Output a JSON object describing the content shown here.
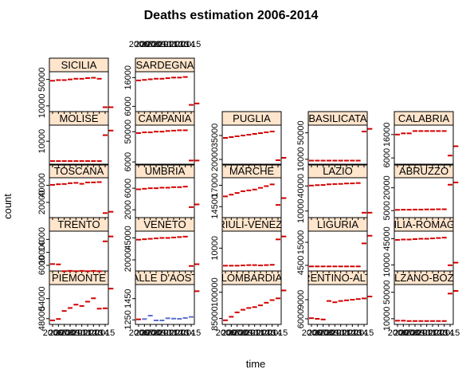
{
  "chart_data": {
    "type": "scatter",
    "title": "Deaths estimation 2006-2014",
    "xlabel": "time",
    "ylabel": "count",
    "x_ticks": [
      "2006",
      "2007",
      "2008",
      "2009",
      "2010",
      "2011",
      "2012",
      "2013",
      "2014",
      "2015"
    ],
    "series_color": "#d40000",
    "alt_color": "#5a6fd0",
    "strip_color": "#ffe5cc",
    "panels": [
      {
        "name": "PIEMONTE",
        "y_ticks": [
          "48000",
          "54000"
        ],
        "ylim": [
          47000,
          57500
        ],
        "values": [
          47500,
          47900,
          50300,
          51200,
          52200,
          51800,
          53100,
          54100,
          51000,
          51100,
          57000
        ]
      },
      {
        "name": "TRENTO",
        "y_ticks": [
          "6000",
          "10000",
          "14000"
        ],
        "ylim": [
          5000,
          15800
        ],
        "values": [
          6400,
          6300,
          4200,
          4300,
          4200,
          4300,
          4200,
          4300,
          4200,
          13400,
          14900
        ]
      },
      {
        "name": "TOSCANA",
        "y_ticks": [
          "20000",
          "40000"
        ],
        "ylim": [
          5000,
          46000
        ],
        "values": [
          40500,
          41200,
          41500,
          42400,
          42800,
          41700,
          43300,
          43400,
          43700,
          7500,
          9000
        ]
      },
      {
        "name": "MOLISE",
        "y_ticks": [
          "10000"
        ],
        "ylim": [
          3000,
          14500
        ],
        "values": [
          3500,
          3500,
          3500,
          3500,
          3500,
          3500,
          3500,
          3500,
          3500,
          12000,
          13500
        ]
      },
      {
        "name": "SICILIA",
        "y_ticks": [
          "10000",
          "50000"
        ],
        "ylim": [
          5000,
          58000
        ],
        "values": [
          48000,
          49000,
          49000,
          50000,
          51000,
          51000,
          52000,
          52500,
          51000,
          8000,
          8000
        ]
      },
      {
        "name": "VALLE D'AOSTA",
        "y_ticks": [
          "1250",
          "1450"
        ],
        "ylim": [
          1230,
          1560
        ],
        "values": [
          1255,
          1258,
          1290,
          1245,
          1245,
          1265,
          1262,
          1260,
          1268,
          1278,
          1520
        ],
        "alt_marks": [
          1,
          2,
          3,
          4,
          5,
          6,
          7,
          8,
          9
        ]
      },
      {
        "name": "VENETO",
        "y_ticks": [
          "20000",
          "45000"
        ],
        "ylim": [
          10000,
          50000
        ],
        "values": [
          43000,
          43500,
          44000,
          44500,
          45000,
          45000,
          45500,
          46000,
          46500,
          13000,
          15000
        ]
      },
      {
        "name": "UMBRIA",
        "y_ticks": [
          "2000",
          "6000"
        ],
        "ylim": [
          1000,
          7500
        ],
        "values": [
          5800,
          5900,
          6000,
          6000,
          6100,
          6100,
          6200,
          6200,
          6300,
          2500,
          3000
        ]
      },
      {
        "name": "CAMPANIA",
        "y_ticks": [
          "6000",
          "50000"
        ],
        "ylim": [
          5000,
          56000
        ],
        "values": [
          48000,
          49000,
          49000,
          50000,
          50000,
          51000,
          51500,
          52000,
          52000,
          8000,
          8000
        ]
      },
      {
        "name": "SARDEGNA",
        "y_ticks": [
          "6000",
          "16000"
        ],
        "ylim": [
          5000,
          17200
        ],
        "values": [
          15000,
          15200,
          15400,
          15600,
          15600,
          15800,
          16000,
          16000,
          16200,
          6500,
          7000
        ]
      },
      {
        "name": "LOMBARDIA",
        "y_ticks": [
          "85000",
          "100000"
        ],
        "ylim": [
          83000,
          103000
        ],
        "values": [
          84000,
          86000,
          88500,
          90000,
          91000,
          91500,
          92500,
          94000,
          95500,
          96500,
          101000
        ]
      },
      {
        "name": "FRIULI-VENEZIA",
        "y_ticks": [
          "10000"
        ],
        "ylim": [
          3000,
          15000
        ],
        "values": [
          4000,
          4000,
          4000,
          4100,
          4200,
          4200,
          4100,
          4200,
          4300,
          13000,
          14000
        ]
      },
      {
        "name": "MARCHE",
        "y_ticks": [
          "14500",
          "17000"
        ],
        "ylim": [
          13500,
          17600
        ],
        "values": [
          15700,
          15900,
          16100,
          16300,
          16400,
          16500,
          16700,
          16900,
          17100,
          14700,
          15500
        ]
      },
      {
        "name": "PUGLIA",
        "y_ticks": [
          "20000",
          "35000"
        ],
        "ylim": [
          18000,
          40000
        ],
        "values": [
          33500,
          34000,
          34500,
          35000,
          35500,
          36000,
          36500,
          37000,
          37500,
          19500,
          21000
        ]
      },
      {
        "name": "TRENTINO-ALTO",
        "y_ticks": [
          "6000",
          "9000"
        ],
        "ylim": [
          5500,
          11000
        ],
        "values": [
          6100,
          6000,
          5900,
          8800,
          8600,
          8800,
          8900,
          9000,
          9100,
          9200,
          9500
        ]
      },
      {
        "name": "LIGURIA",
        "y_ticks": [
          "4500",
          "15000"
        ],
        "ylim": [
          3000,
          19000
        ],
        "values": [
          4000,
          4000,
          4000,
          4000,
          4000,
          4000,
          4000,
          4000,
          4000,
          14500,
          18000
        ]
      },
      {
        "name": "LAZIO",
        "y_ticks": [
          "10000",
          "40000"
        ],
        "ylim": [
          5000,
          47000
        ],
        "values": [
          40500,
          41000,
          41200,
          42000,
          42300,
          42500,
          43000,
          43100,
          43500,
          8000,
          8000
        ]
      },
      {
        "name": "BASILICATA",
        "y_ticks": [
          "10000",
          "50000"
        ],
        "ylim": [
          5000,
          58000
        ],
        "values": [
          8000,
          8000,
          8000,
          8000,
          8000,
          8000,
          8000,
          8000,
          8000,
          52000,
          56000
        ]
      },
      {
        "name": "BOLZANO-BOZEN",
        "y_ticks": [
          "10000",
          "50000"
        ],
        "ylim": [
          5000,
          58000
        ],
        "values": [
          7000,
          7000,
          6500,
          6500,
          6500,
          6500,
          6500,
          6500,
          6500,
          48000,
          52000
        ]
      },
      {
        "name": "EMILIA-ROMAGNA",
        "y_ticks": [
          "10000",
          "45000"
        ],
        "ylim": [
          5000,
          52000
        ],
        "values": [
          43500,
          44000,
          44000,
          44500,
          45000,
          45000,
          45500,
          46000,
          46500,
          9500,
          13000
        ]
      },
      {
        "name": "ABRUZZO",
        "y_ticks": [
          "5000",
          "20000"
        ],
        "ylim": [
          2000,
          25000
        ],
        "values": [
          5500,
          5600,
          5600,
          5700,
          5700,
          5800,
          5800,
          5900,
          5900,
          22000,
          23500
        ]
      },
      {
        "name": "CALABRIA",
        "y_ticks": [
          "6000",
          "16000"
        ],
        "ylim": [
          4000,
          19000
        ],
        "values": [
          16000,
          16500,
          16500,
          17500,
          17500,
          17500,
          17500,
          17500,
          17500,
          7000,
          11000
        ]
      }
    ]
  }
}
